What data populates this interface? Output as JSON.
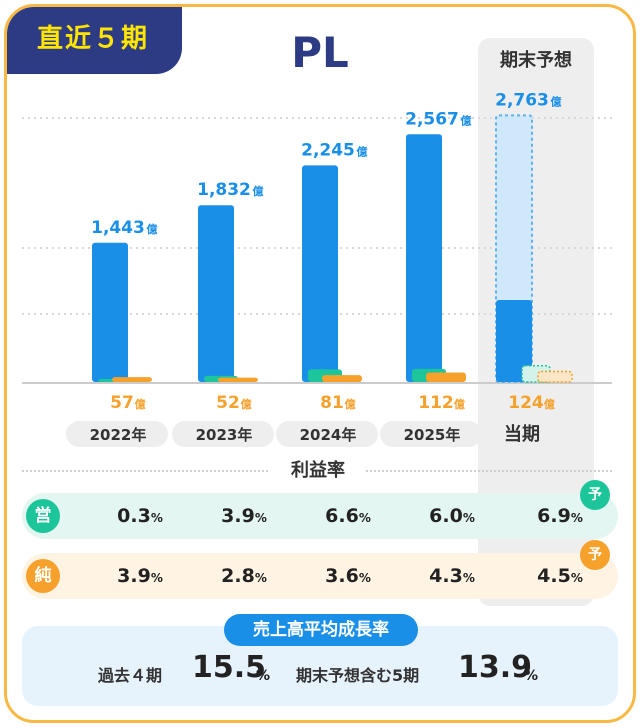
{
  "badge": "直近５期",
  "chart_data": {
    "type": "bar",
    "title": "PL",
    "categories": [
      "2022年",
      "2023年",
      "2024年",
      "2025年",
      "当期"
    ],
    "forecast_label": "期末予想",
    "unit": "億",
    "series": [
      {
        "values": [
          1443,
          1832,
          2245,
          2567,
          2763
        ],
        "labels": [
          "1,443",
          "1,832",
          "2,245",
          "2,567",
          "2,763"
        ],
        "color": "#1a8fe8"
      },
      {
        "values": [
          4,
          72,
          148,
          154,
          191
        ],
        "color": "#1cc59a"
      },
      {
        "values": [
          57,
          52,
          81,
          112,
          124
        ],
        "labels": [
          "57",
          "52",
          "81",
          "112",
          "124"
        ],
        "color": "#f6a12c"
      }
    ],
    "current_actual_revenue": 850,
    "ylim": [
      0,
      3400
    ]
  },
  "profit_rate": {
    "title": "利益率",
    "operating": {
      "icon": "営",
      "values": [
        "0.3",
        "3.9",
        "6.6",
        "6.0",
        "6.9"
      ]
    },
    "net": {
      "icon": "純",
      "values": [
        "3.9",
        "2.8",
        "3.6",
        "4.3",
        "4.5"
      ]
    },
    "pct": "%",
    "forecast_mark": "予"
  },
  "growth": {
    "title": "売上高平均成長率",
    "past_label": "過去４期",
    "past_value": "15.5",
    "incl_label": "期末予想含む5期",
    "incl_value": "13.9",
    "pct": "%"
  }
}
